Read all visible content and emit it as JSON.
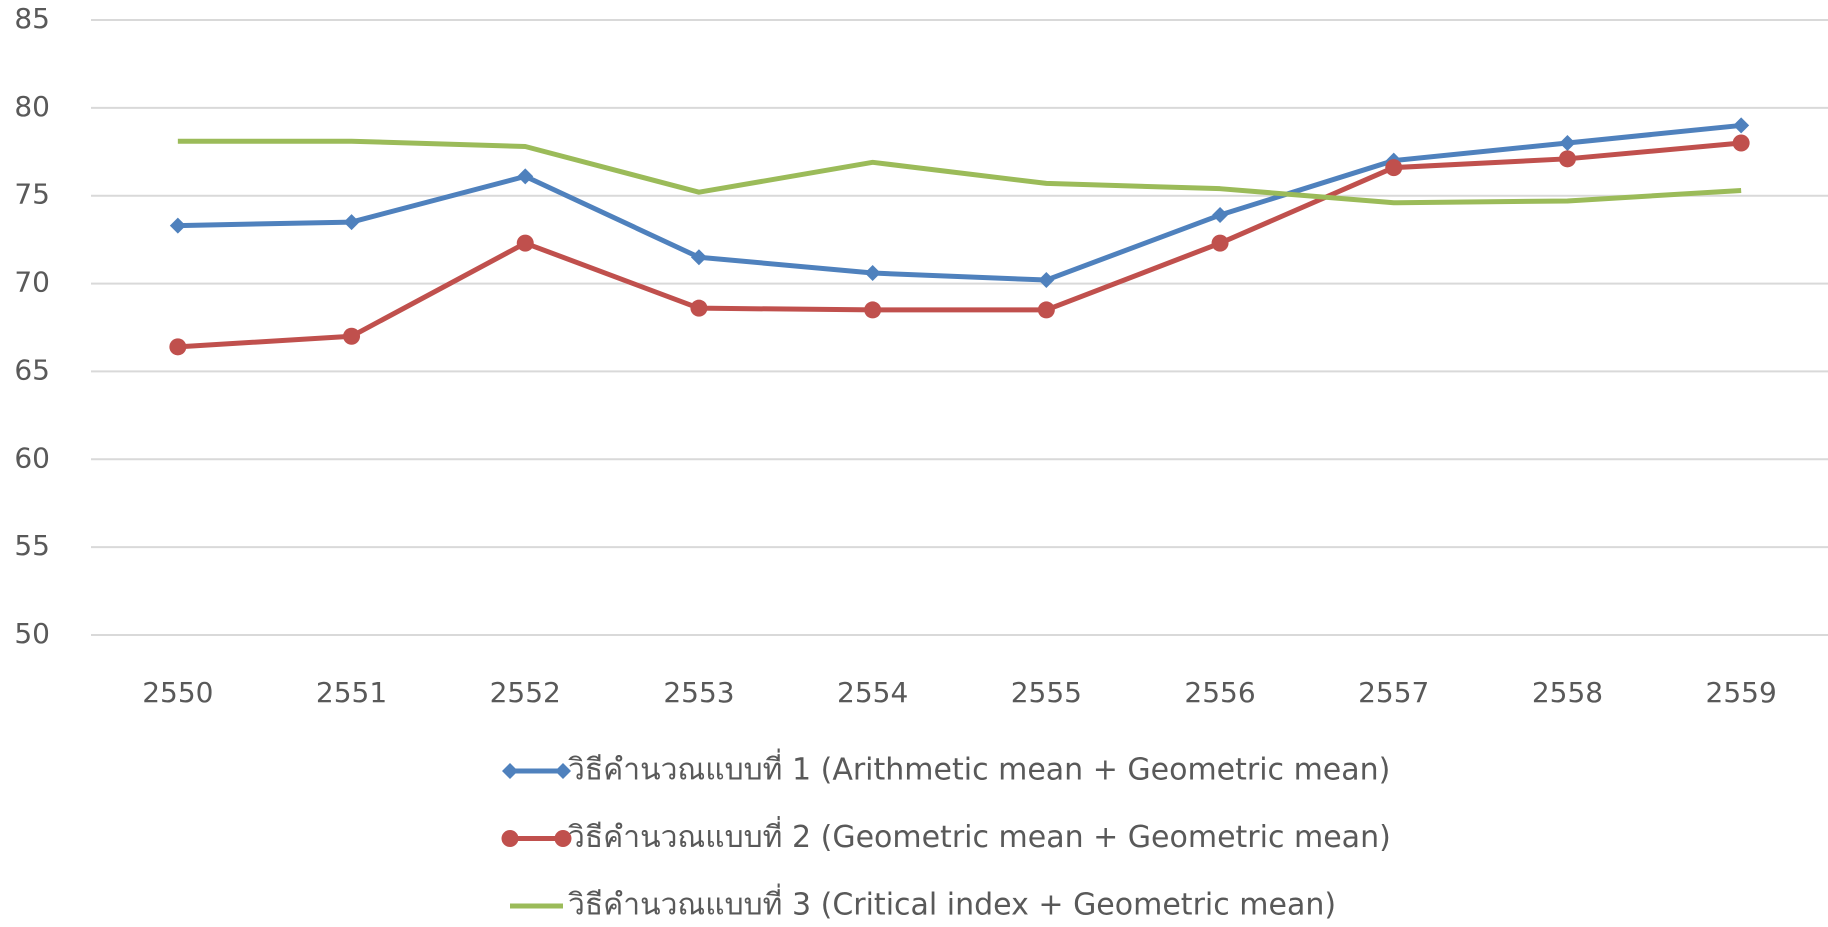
{
  "chart_data": {
    "type": "line",
    "categories": [
      "2550",
      "2551",
      "2552",
      "2553",
      "2554",
      "2555",
      "2556",
      "2557",
      "2558",
      "2559"
    ],
    "series": [
      {
        "name": "วิธีคำนวณแบบที่ 1 (Arithmetic mean + Geometric mean)",
        "color": "#4f81bd",
        "marker": "diamond",
        "values": [
          73.3,
          73.5,
          76.1,
          71.5,
          70.6,
          70.2,
          73.9,
          77.0,
          78.0,
          79.0
        ]
      },
      {
        "name": "วิธีคำนวณแบบที่ 2 (Geometric mean + Geometric mean)",
        "color": "#c0504d",
        "marker": "circle",
        "values": [
          66.4,
          67.0,
          72.3,
          68.6,
          68.5,
          68.5,
          72.3,
          76.6,
          77.1,
          78.0
        ]
      },
      {
        "name": "วิธีคำนวณแบบที่ 3 (Critical index + Geometric mean)",
        "color": "#9bbb59",
        "marker": "none",
        "values": [
          78.1,
          78.1,
          77.8,
          75.2,
          76.9,
          75.7,
          75.4,
          74.6,
          74.7,
          75.3
        ]
      }
    ],
    "ylim": [
      50,
      85
    ],
    "yticks": [
      50,
      55,
      60,
      65,
      70,
      75,
      80,
      85
    ],
    "grid": true,
    "legend": "bottom"
  }
}
